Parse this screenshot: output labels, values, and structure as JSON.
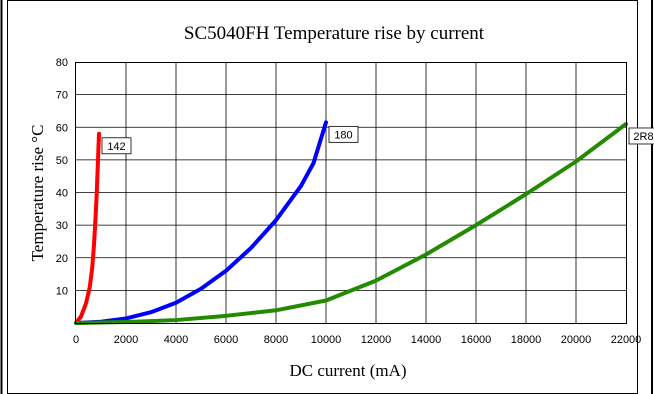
{
  "chart_data": {
    "type": "line",
    "title": "SC5040FH Temperature rise by current",
    "xlabel": "DC current (mA)",
    "ylabel": "Temperature rise °C",
    "xlim": [
      0,
      22000
    ],
    "ylim": [
      0,
      80
    ],
    "x_ticks": [
      0,
      2000,
      4000,
      6000,
      8000,
      10000,
      12000,
      14000,
      16000,
      18000,
      20000,
      22000
    ],
    "y_ticks": [
      10,
      20,
      30,
      40,
      50,
      60,
      70,
      80
    ],
    "grid": true,
    "series": [
      {
        "name": "142",
        "color": "#ff0000",
        "x": [
          0,
          200,
          400,
          550,
          650,
          720,
          780,
          830,
          880,
          920
        ],
        "y": [
          0,
          2,
          6,
          11,
          17,
          24,
          32,
          40,
          50,
          58
        ]
      },
      {
        "name": "180",
        "color": "#0000ff",
        "x": [
          0,
          1000,
          2000,
          3000,
          4000,
          5000,
          6000,
          7000,
          8000,
          9000,
          9500,
          10000
        ],
        "y": [
          0,
          0.4,
          1.4,
          3.3,
          6.2,
          10.5,
          16,
          23,
          31.5,
          42,
          49,
          61.5
        ]
      },
      {
        "name": "2R8",
        "color": "#228b00",
        "x": [
          0,
          2000,
          4000,
          6000,
          8000,
          10000,
          12000,
          14000,
          16000,
          18000,
          20000,
          22000
        ],
        "y": [
          0,
          0.3,
          0.9,
          2.2,
          3.9,
          6.9,
          13,
          21,
          30,
          39.5,
          49.5,
          61
        ]
      }
    ]
  }
}
